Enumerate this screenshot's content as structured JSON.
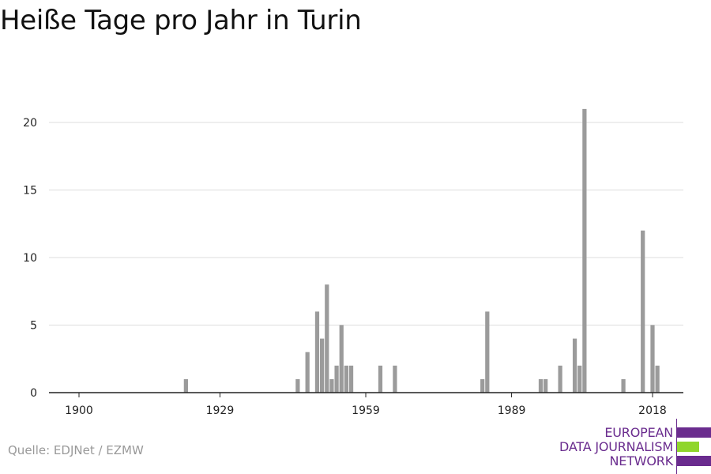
{
  "title": "Heiße Tage pro Jahr in Turin",
  "source": "Quelle: EDJNet / EZMW",
  "logo": {
    "lines": [
      "EUROPEAN",
      "DATA JOURNALISM",
      "NETWORK"
    ],
    "colors": {
      "purple": "#6a2c8e",
      "green": "#8fd62b"
    }
  },
  "colors": {
    "bar": "#9b9b9b",
    "grid": "#dddddd",
    "axis": "#222222"
  },
  "chart_data": {
    "type": "bar",
    "title": "Heiße Tage pro Jahr in Turin",
    "xlabel": "",
    "ylabel": "",
    "xlim": [
      1900,
      2018
    ],
    "ylim": [
      0,
      21
    ],
    "x_ticks": [
      1900,
      1929,
      1959,
      1989,
      2018
    ],
    "y_ticks": [
      0,
      5,
      10,
      15,
      20
    ],
    "grid": true,
    "x": [
      1922,
      1945,
      1947,
      1949,
      1950,
      1951,
      1952,
      1953,
      1954,
      1955,
      1956,
      1962,
      1965,
      1983,
      1984,
      1995,
      1996,
      1999,
      2002,
      2003,
      2004,
      2012,
      2016,
      2018,
      2019
    ],
    "values": [
      1,
      1,
      3,
      6,
      4,
      8,
      1,
      2,
      5,
      2,
      2,
      2,
      2,
      1,
      6,
      1,
      1,
      2,
      4,
      2,
      21,
      1,
      12,
      5,
      2
    ]
  }
}
